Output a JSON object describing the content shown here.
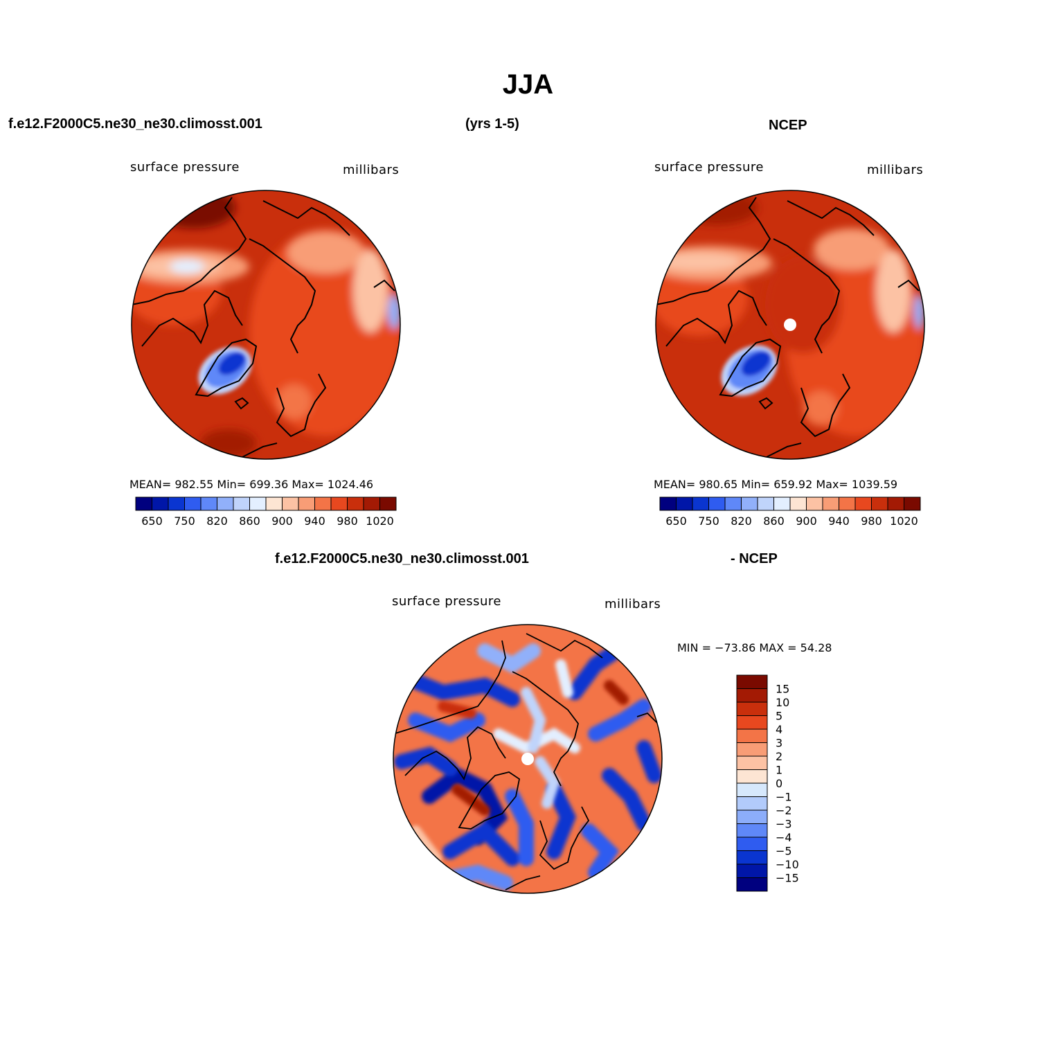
{
  "title": "JJA",
  "top_left": {
    "case": "f.e12.F2000C5.ne30_ne30.climosst.001",
    "years": "(yrs 1-5)",
    "variable": "surface pressure",
    "units": "millibars",
    "stats": "MEAN= 982.55   Min= 699.36   Max= 1024.46"
  },
  "top_right": {
    "case": "NCEP",
    "variable": "surface pressure",
    "units": "millibars",
    "stats": "MEAN= 980.65   Min= 659.92   Max= 1039.59"
  },
  "bottom": {
    "case": "f.e12.F2000C5.ne30_ne30.climosst.001",
    "minus": "- NCEP",
    "variable": "surface pressure",
    "units": "millibars",
    "stats": "MIN = −73.86  MAX =   54.28"
  },
  "abs_colorbar": {
    "colors": [
      "#00007f",
      "#0016a8",
      "#0a35d0",
      "#2f5cf0",
      "#5f88f8",
      "#91b0fa",
      "#c0d4fb",
      "#e3efff",
      "#fde5d3",
      "#fcc2a4",
      "#f89d76",
      "#f37447",
      "#e8481f",
      "#c92f0c",
      "#a31a04",
      "#7a0a00"
    ],
    "tick_labels": [
      "650",
      "750",
      "820",
      "860",
      "900",
      "940",
      "980",
      "1020"
    ]
  },
  "diff_colorbar": {
    "colors": [
      "#7a0a00",
      "#a31a04",
      "#c92f0c",
      "#e8481f",
      "#f37447",
      "#f89d76",
      "#fcc2a4",
      "#fde5d3",
      "#d6e8fc",
      "#b2cbfb",
      "#8cadfa",
      "#5f88f8",
      "#2f5cf0",
      "#0a35d0",
      "#0016a8",
      "#00007f"
    ],
    "tick_labels": [
      "15",
      "10",
      "5",
      "4",
      "3",
      "2",
      "1",
      "0",
      "−1",
      "−2",
      "−3",
      "−4",
      "−5",
      "−10",
      "−15"
    ]
  }
}
